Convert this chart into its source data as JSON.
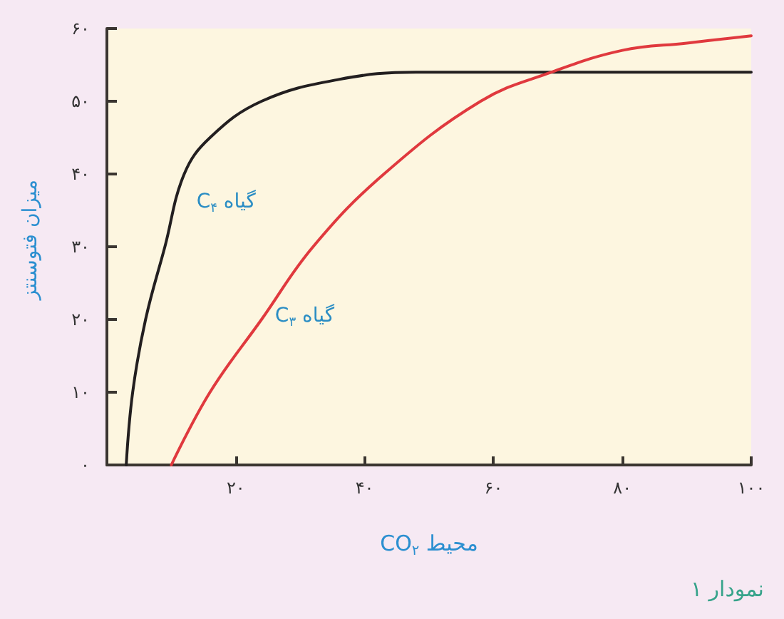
{
  "chart_data": {
    "type": "line",
    "xlabel": "CO$_{۲}$ محیط",
    "ylabel": "میزان فتوسنتز",
    "annotations": [
      "نمودار ۱"
    ],
    "series": [
      {
        "name": "گیاه C$_{۴}$",
        "color": "#231f20",
        "x": [
          3,
          4,
          6,
          9,
          12,
          16,
          24,
          36,
          48,
          100
        ],
        "values": [
          0,
          10,
          20,
          30,
          40,
          45,
          50,
          53,
          54,
          54
        ]
      },
      {
        "name": "گیاه C$_{۳}$",
        "color": "#e0393e",
        "x": [
          10,
          16,
          24,
          32,
          43,
          58,
          69,
          80,
          90,
          100
        ],
        "values": [
          0,
          10,
          20,
          30,
          40,
          50,
          54,
          57,
          58,
          59
        ]
      }
    ],
    "xlim": [
      0,
      100
    ],
    "xticks": [
      {
        "value": 20,
        "label": "۲۰"
      },
      {
        "value": 40,
        "label": "۴۰"
      },
      {
        "value": 60,
        "label": "۶۰"
      },
      {
        "value": 80,
        "label": "۸۰"
      },
      {
        "value": 100,
        "label": "۱۰۰"
      }
    ],
    "ylim": [
      0,
      60
    ],
    "yticks": [
      {
        "value": 0,
        "label": "۰"
      },
      {
        "value": 10,
        "label": "۱۰"
      },
      {
        "value": 20,
        "label": "۲۰"
      },
      {
        "value": 30,
        "label": "۳۰"
      },
      {
        "value": 40,
        "label": "۴۰"
      },
      {
        "value": 50,
        "label": "۵۰"
      },
      {
        "value": 60,
        "label": "۶۰"
      }
    ],
    "grid": false,
    "legend": false,
    "marker": "none",
    "line_style": "solid"
  }
}
